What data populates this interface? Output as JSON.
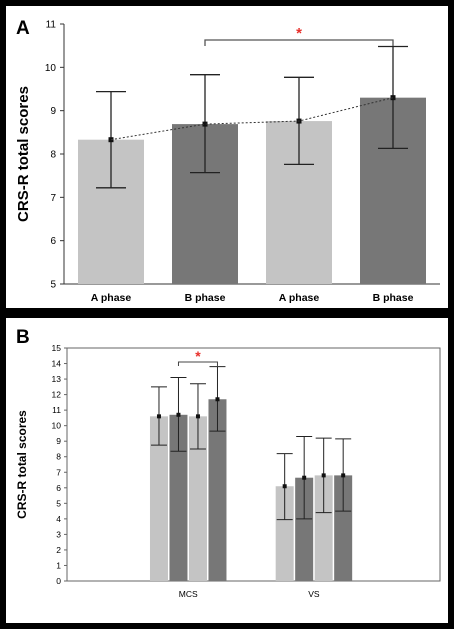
{
  "colors": {
    "light_bar": "#c4c4c4",
    "dark_bar": "#777777",
    "significance": "#e8302b",
    "frame": "#000000"
  },
  "chart_data": [
    {
      "type": "bar",
      "panel_label": "A",
      "categories": [
        "A phase",
        "B phase",
        "A phase",
        "B phase"
      ],
      "values": [
        8.33,
        8.69,
        8.76,
        9.3
      ],
      "error": [
        [
          7.22,
          9.44
        ],
        [
          7.57,
          9.83
        ],
        [
          7.76,
          9.77
        ],
        [
          8.13,
          10.48
        ]
      ],
      "bar_colors": [
        "light",
        "dark",
        "light",
        "dark"
      ],
      "ylabel": "CRS-R total scores",
      "xlabel": "",
      "ylim": [
        5,
        11
      ],
      "yticks": [
        "5",
        "6",
        "7",
        "8",
        "9",
        "10",
        "11"
      ],
      "trend_line": "dotted",
      "significance": {
        "from": 1,
        "to": 3,
        "marker": "*"
      }
    },
    {
      "type": "bar",
      "panel_label": "B",
      "categories": [
        "MCS",
        "VS"
      ],
      "series": [
        {
          "values": [
            10.6,
            6.1
          ],
          "color": "light",
          "error": [
            [
              8.75,
              12.5
            ],
            [
              3.95,
              8.2
            ]
          ]
        },
        {
          "values": [
            10.7,
            6.65
          ],
          "color": "dark",
          "error": [
            [
              8.35,
              13.1
            ],
            [
              4.0,
              9.3
            ]
          ]
        },
        {
          "values": [
            10.6,
            6.8
          ],
          "color": "light",
          "error": [
            [
              8.5,
              12.7
            ],
            [
              4.4,
              9.2
            ]
          ]
        },
        {
          "values": [
            11.7,
            6.8
          ],
          "color": "dark",
          "error": [
            [
              9.65,
              13.8
            ],
            [
              4.5,
              9.15
            ]
          ]
        }
      ],
      "ylabel": "CRS-R total scores",
      "xlabel": "",
      "ylim": [
        0,
        15
      ],
      "yticks": [
        "0",
        "1",
        "2",
        "3",
        "4",
        "5",
        "6",
        "7",
        "8",
        "9",
        "10",
        "11",
        "12",
        "13",
        "14",
        "15"
      ],
      "significance": {
        "category": 0,
        "from_series": 1,
        "to_series": 3,
        "marker": "*"
      }
    }
  ]
}
